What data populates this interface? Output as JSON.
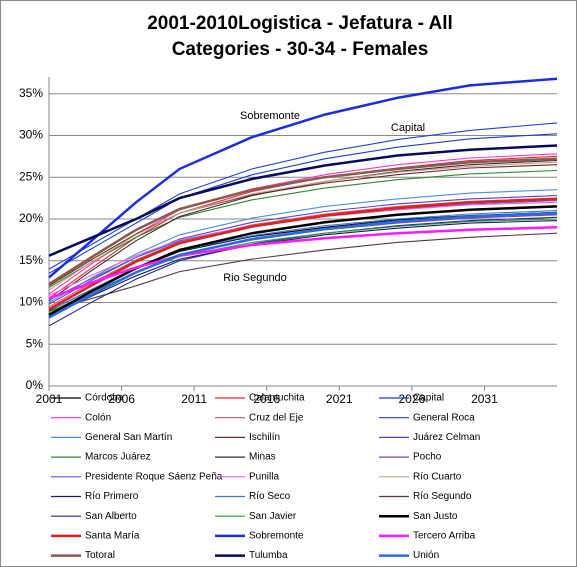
{
  "chart_data": {
    "type": "line",
    "title": [
      "2001-2010Logistica - Jefatura - All",
      "Categories - 30-34 - Females"
    ],
    "annotations": [
      "Sobremonte",
      "Capital",
      "Rio Segundo"
    ],
    "x": [
      2001,
      2004,
      2007,
      2010,
      2015,
      2020,
      2025,
      2030,
      2036
    ],
    "xlim": [
      2001,
      2036
    ],
    "xticks": [
      2001,
      2006,
      2011,
      2016,
      2021,
      2026,
      2031
    ],
    "ylim": [
      0,
      37
    ],
    "yticks": [
      {
        "value": 0,
        "label": "0%"
      },
      {
        "value": 5,
        "label": "5%"
      },
      {
        "value": 10,
        "label": "10%"
      },
      {
        "value": 15,
        "label": "15%"
      },
      {
        "value": 20,
        "label": "20%"
      },
      {
        "value": 25,
        "label": "25%"
      },
      {
        "value": 30,
        "label": "30%"
      },
      {
        "value": 35,
        "label": "35%"
      }
    ],
    "grid": true,
    "series": [
      {
        "name": "Córdoba",
        "color": "#000000",
        "values": [
          9,
          11.6,
          14.1,
          16.1,
          17.9,
          19.0,
          19.9,
          20.4,
          20.8
        ]
      },
      {
        "name": "Calamuchita",
        "color": "#e8262a",
        "values": [
          10.5,
          14.2,
          17.8,
          20.7,
          23.3,
          25,
          26.1,
          27,
          27.5
        ]
      },
      {
        "name": "Capital",
        "color": "#1f3fbf",
        "values": [
          13.5,
          16.5,
          19.5,
          22.5,
          25.3,
          27.2,
          28.6,
          29.6,
          30.2
        ]
      },
      {
        "name": "Colón",
        "color": "#ff33cc",
        "values": [
          11,
          14.7,
          18.2,
          21.1,
          23.6,
          25.3,
          26.5,
          27.3,
          27.8
        ]
      },
      {
        "name": "Cruz del Eje",
        "color": "#b5655a",
        "values": [
          9.5,
          12.4,
          15.1,
          17.3,
          19.3,
          20.6,
          21.5,
          22.1,
          22.5
        ]
      },
      {
        "name": "General Roca",
        "color": "#2244cc",
        "values": [
          14,
          17,
          20,
          23,
          26,
          28,
          29.5,
          30.6,
          31.5
        ]
      },
      {
        "name": "General San Martín",
        "color": "#4a8fe0",
        "values": [
          10,
          13,
          15.8,
          18.1,
          20.1,
          21.5,
          22.4,
          23.1,
          23.5
        ]
      },
      {
        "name": "Ischilín",
        "color": "#6b2a2a",
        "values": [
          12,
          15.2,
          18.2,
          20.7,
          22.9,
          24.3,
          25.3,
          26.1,
          26.5
        ]
      },
      {
        "name": "Juárez Celman",
        "color": "#6a3ab0",
        "values": [
          9.8,
          12.7,
          15.4,
          17.6,
          19.6,
          20.9,
          21.8,
          22.4,
          22.8
        ]
      },
      {
        "name": "Marcos Juárez",
        "color": "#2e8b2e",
        "values": [
          11.8,
          14.9,
          17.8,
          20.2,
          22.3,
          23.7,
          24.7,
          25.4,
          25.8
        ]
      },
      {
        "name": "Minas",
        "color": "#3a2a3a",
        "values": [
          10.2,
          13.9,
          17.4,
          20.3,
          22.8,
          24.5,
          25.7,
          26.5,
          27
        ]
      },
      {
        "name": "Pocho",
        "color": "#8a3ab5",
        "values": [
          8.5,
          11.1,
          13.7,
          15.7,
          17.5,
          18.7,
          19.5,
          20.1,
          20.5
        ]
      },
      {
        "name": "Presidente Roque Sáenz Peña",
        "color": "#5a5ad0",
        "values": [
          10.3,
          12.9,
          15.4,
          17.4,
          19.2,
          20.4,
          21.2,
          21.8,
          22.2
        ]
      },
      {
        "name": "Punilla",
        "color": "#e066e0",
        "values": [
          10.8,
          13.3,
          15.6,
          17.5,
          19.2,
          20.3,
          21.1,
          21.7,
          22
        ]
      },
      {
        "name": "Río Cuarto",
        "color": "#c8a090",
        "values": [
          11.5,
          14.9,
          18.1,
          20.7,
          23,
          24.5,
          25.6,
          26.3,
          26.8
        ]
      },
      {
        "name": "Río Primero",
        "color": "#1a1a6a",
        "values": [
          8.3,
          10.8,
          13.2,
          15.2,
          16.9,
          18.1,
          18.9,
          19.5,
          19.8
        ]
      },
      {
        "name": "Río Seco",
        "color": "#3a7ad0",
        "values": [
          9,
          11.6,
          14.2,
          16.2,
          18,
          19.2,
          20,
          20.6,
          21
        ]
      },
      {
        "name": "Río Segundo",
        "color": "#5a3a3a",
        "values": [
          9,
          10.5,
          12,
          13.7,
          15.2,
          16.3,
          17.2,
          17.8,
          18.3
        ]
      },
      {
        "name": "San Alberto",
        "color": "#2a2a8a",
        "values": [
          7.2,
          10.1,
          12.8,
          15,
          17,
          18.3,
          19.2,
          19.8,
          20.2
        ]
      },
      {
        "name": "San Javier",
        "color": "#2aa02a",
        "values": [
          8.8,
          11.3,
          13.6,
          15.5,
          17.2,
          18.3,
          19.1,
          19.7,
          20
        ]
      },
      {
        "name": "San Justo",
        "color": "#000000",
        "values": [
          8.5,
          11.4,
          14.1,
          16.3,
          18.3,
          19.6,
          20.5,
          21.1,
          21.5
        ]
      },
      {
        "name": "Santa María",
        "color": "#e02020",
        "values": [
          9.2,
          12.1,
          14.9,
          17.1,
          19.1,
          20.4,
          21.3,
          22,
          22.4
        ]
      },
      {
        "name": "Sobremonte",
        "color": "#1a2ee0",
        "values": [
          13,
          17.5,
          22,
          26,
          29.8,
          32.5,
          34.5,
          36,
          36.8
        ]
      },
      {
        "name": "Tercero Arriba",
        "color": "#ff1aff",
        "values": [
          10.5,
          12.4,
          14.2,
          15.6,
          16.9,
          17.7,
          18.3,
          18.7,
          19
        ]
      },
      {
        "name": "Totoral",
        "color": "#8a5a4a",
        "values": [
          12.2,
          15.5,
          18.7,
          21.2,
          23.5,
          25,
          26,
          26.8,
          27.2
        ]
      },
      {
        "name": "Tulumba",
        "color": "#0a0a5a",
        "values": [
          15.6,
          17.8,
          20,
          22.5,
          24.8,
          26.4,
          27.6,
          28.3,
          28.8
        ]
      },
      {
        "name": "Unión",
        "color": "#2a6ae0",
        "values": [
          8.2,
          11,
          13.6,
          15.7,
          17.6,
          18.8,
          19.7,
          20.3,
          20.7
        ]
      }
    ]
  }
}
